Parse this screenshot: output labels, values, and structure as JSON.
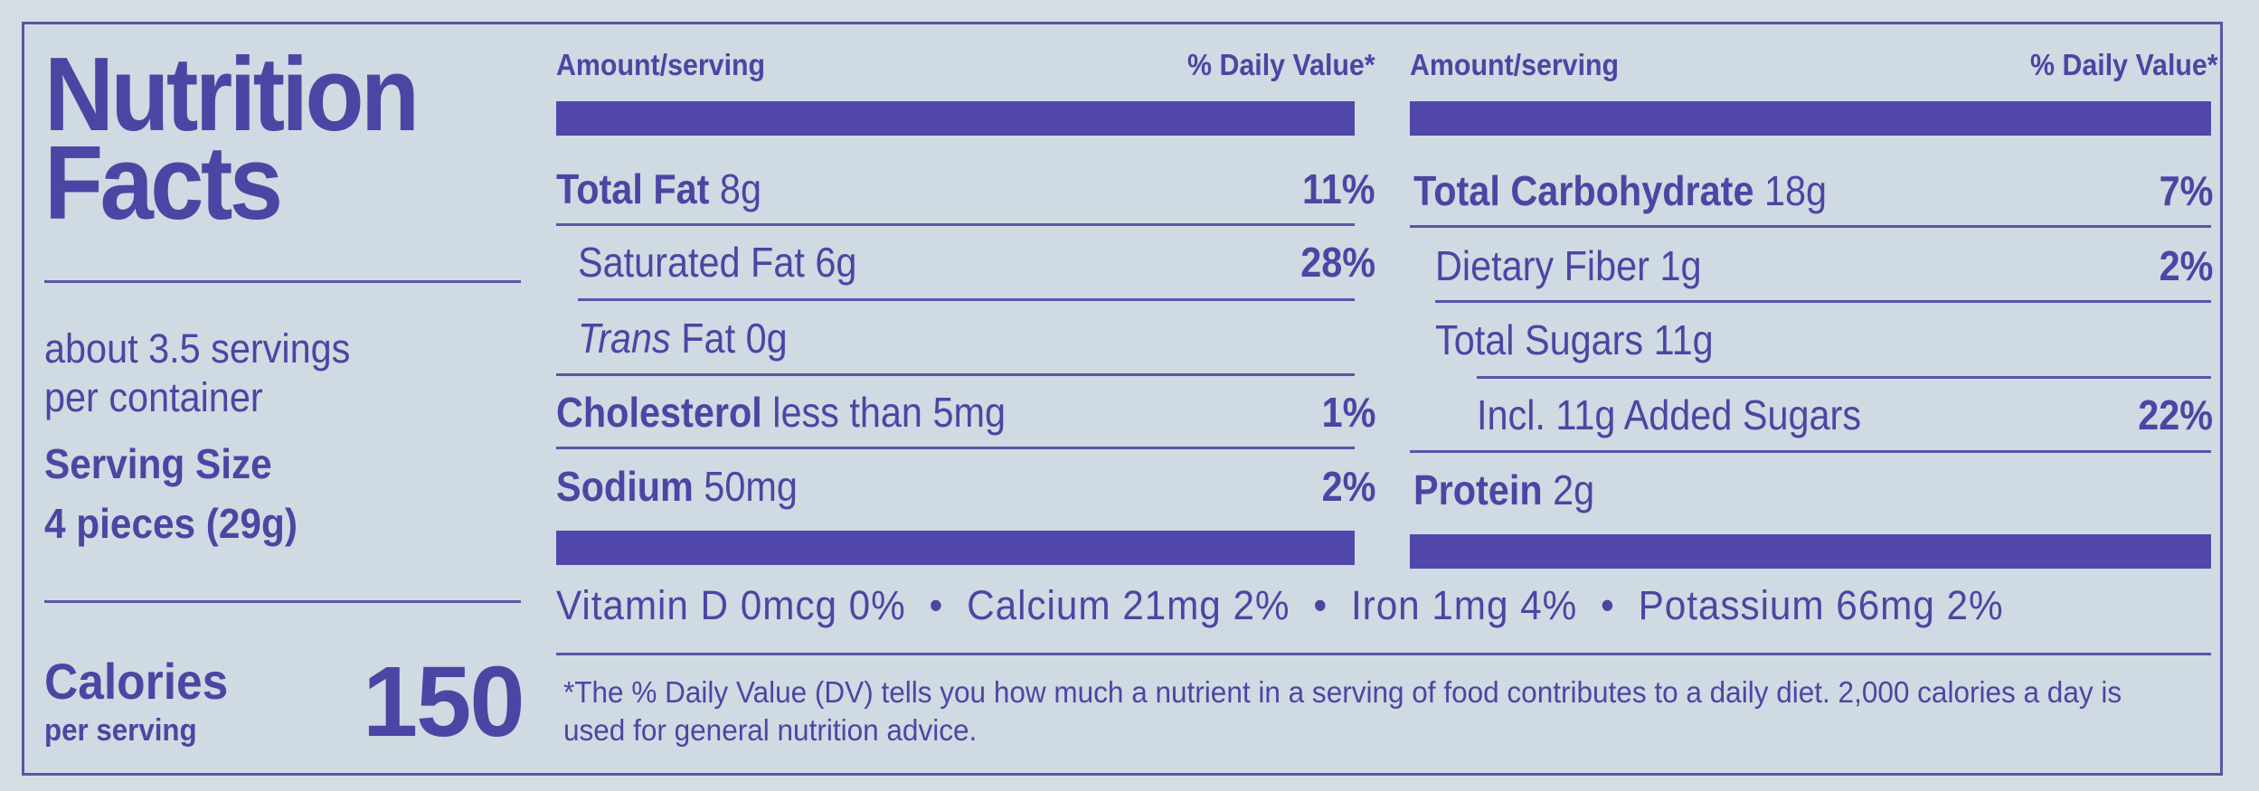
{
  "title_line1": "Nutrition",
  "title_line2": "Facts",
  "servings_line1": "about 3.5 servings",
  "servings_line2": "per container",
  "serving_size_label": "Serving Size",
  "serving_size_value": "4 pieces (29g)",
  "calories_label": "Calories",
  "calories_sublabel": "per serving",
  "calories_value": "150",
  "header_amount": "Amount/serving",
  "header_dv": "% Daily Value*",
  "left_rows": [
    {
      "name": "Total Fat",
      "amount": " 8g",
      "dv": "11%"
    },
    {
      "name": "Saturated Fat",
      "amount": " 6g",
      "dv": "28%"
    },
    {
      "name": "Trans",
      "amount": " Fat 0g",
      "dv": ""
    },
    {
      "name": "Cholesterol",
      "amount": " less than 5mg",
      "dv": "1%"
    },
    {
      "name": "Sodium",
      "amount": " 50mg",
      "dv": "2%"
    }
  ],
  "right_rows": [
    {
      "name": "Total Carbohydrate",
      "amount": " 18g",
      "dv": "7%"
    },
    {
      "name": "Dietary Fiber",
      "amount": " 1g",
      "dv": "2%"
    },
    {
      "name": "Total Sugars",
      "amount": " 11g",
      "dv": ""
    },
    {
      "name": "Incl. 11g Added Sugars",
      "amount": "",
      "dv": "22%"
    },
    {
      "name": "Protein",
      "amount": " 2g",
      "dv": ""
    }
  ],
  "vitamins": {
    "vitamin_d": "Vitamin D  0mcg  0%",
    "calcium": "Calcium  21mg  2%",
    "iron": "Iron  1mg  4%",
    "potassium": "Potassium  66mg  2%",
    "bullet": "•"
  },
  "footnote": "*The % Daily Value (DV) tells you how much a nutrient in a serving of food contributes to a daily diet. 2,000 calories a day is used for general nutrition advice.",
  "colors": {
    "ink": "#4d45a3",
    "background": "#cfdae2"
  }
}
